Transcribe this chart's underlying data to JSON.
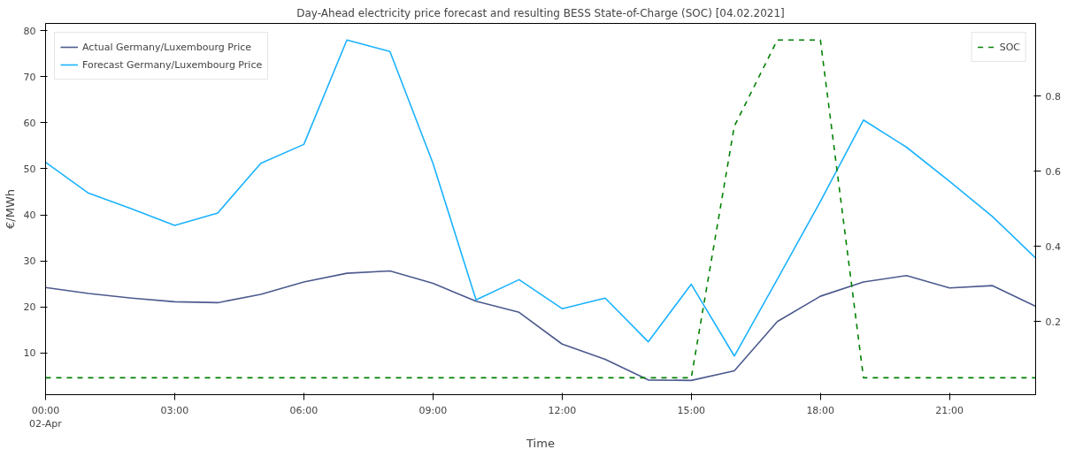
{
  "chart_data": {
    "type": "line",
    "title": "Day-Ahead electricity price forecast and resulting BESS State-of-Charge (SOC) [04.02.2021]",
    "xlabel": "Time",
    "ylabel": "€/MWh",
    "x": [
      0,
      1,
      2,
      3,
      4,
      5,
      6,
      7,
      8,
      9,
      10,
      11,
      12,
      13,
      14,
      15,
      16,
      17,
      18,
      19,
      20,
      21,
      22,
      23
    ],
    "series": [
      {
        "name": "Actual Germany/Luxembourg Price",
        "color": "#4c5a8e",
        "values": [
          24.2,
          22.9,
          21.9,
          21.1,
          20.9,
          22.7,
          25.4,
          27.3,
          27.8,
          25.1,
          21.2,
          18.8,
          11.9,
          8.6,
          4.1,
          4.0,
          6.1,
          16.8,
          22.3,
          25.4,
          26.8,
          24.1,
          24.6,
          20.1
        ]
      },
      {
        "name": "Forecast Germany/Luxembourg Price",
        "color": "#1ab2ff",
        "values": [
          51.4,
          44.7,
          41.3,
          37.7,
          40.4,
          51.2,
          55.3,
          78.0,
          75.5,
          51.2,
          21.5,
          25.9,
          19.6,
          21.9,
          12.4,
          24.9,
          9.3,
          26.0,
          42.9,
          60.6,
          54.7,
          47.3,
          39.6,
          30.6
        ]
      },
      {
        "name": "SOC",
        "color": "#008000",
        "axis": "y2",
        "line_style": "dashed",
        "values": [
          0.05,
          0.05,
          0.05,
          0.05,
          0.05,
          0.05,
          0.05,
          0.05,
          0.05,
          0.05,
          0.05,
          0.05,
          0.05,
          0.05,
          0.05,
          0.05,
          0.72,
          0.95,
          0.95,
          0.05,
          0.05,
          0.05,
          0.05,
          0.05
        ]
      }
    ],
    "xlim": [
      0,
      23
    ],
    "xticks": [
      {
        "value": 0,
        "label": "00:00\n02-Apr"
      },
      {
        "value": 3,
        "label": "03:00"
      },
      {
        "value": 6,
        "label": "06:00"
      },
      {
        "value": 9,
        "label": "09:00"
      },
      {
        "value": 12,
        "label": "12:00"
      },
      {
        "value": 15,
        "label": "15:00"
      },
      {
        "value": 18,
        "label": "18:00"
      },
      {
        "value": 21,
        "label": "21:00"
      }
    ],
    "ylim": [
      0.9,
      81.6
    ],
    "yticks": [
      10,
      20,
      30,
      40,
      50,
      60,
      70,
      80
    ],
    "y2lim": [
      0.005,
      0.994
    ],
    "y2ticks": [
      0.2,
      0.4,
      0.6,
      0.8
    ],
    "legend": "top left",
    "grid": false,
    "line_style": "solid",
    "marker": "none"
  }
}
